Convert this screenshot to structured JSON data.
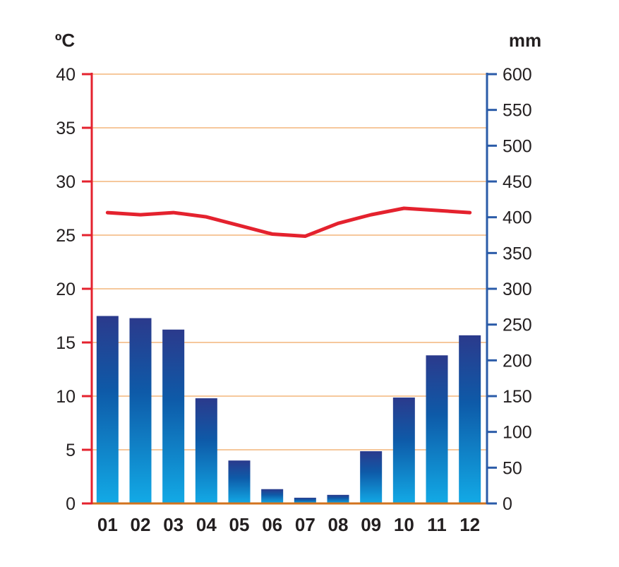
{
  "chart_data": {
    "type": "bar",
    "subtype": "climate-diagram",
    "categories": [
      "01",
      "02",
      "03",
      "04",
      "05",
      "06",
      "07",
      "08",
      "09",
      "10",
      "11",
      "12"
    ],
    "series": [
      {
        "kind": "bar",
        "axis": "right",
        "values": [
          262,
          259,
          243,
          147,
          60,
          20,
          8,
          12,
          73,
          148,
          207,
          235
        ]
      },
      {
        "kind": "line",
        "axis": "left",
        "values": [
          27.1,
          26.9,
          27.1,
          26.7,
          25.9,
          25.1,
          24.9,
          26.1,
          26.9,
          27.5,
          27.3,
          27.1
        ]
      }
    ],
    "left_axis": {
      "unit": "ºC",
      "ylim": [
        0,
        40
      ],
      "ticks": [
        "0",
        "5",
        "10",
        "15",
        "20",
        "25",
        "30",
        "35",
        "40"
      ],
      "color": "#e4222e"
    },
    "right_axis": {
      "unit": "mm",
      "ylim": [
        0,
        600
      ],
      "ticks": [
        "0",
        "50",
        "100",
        "150",
        "200",
        "250",
        "300",
        "350",
        "400",
        "450",
        "500",
        "550",
        "600"
      ],
      "color": "#2a5ba8"
    },
    "grid": true,
    "colors": {
      "temperature_line": "#e4222e",
      "bar_top": "#2b3a8c",
      "bar_mid": "#0e5aa8",
      "bar_bottom": "#12aae6",
      "gridline": "#f6c89c",
      "baseline": "#d2731e"
    }
  }
}
